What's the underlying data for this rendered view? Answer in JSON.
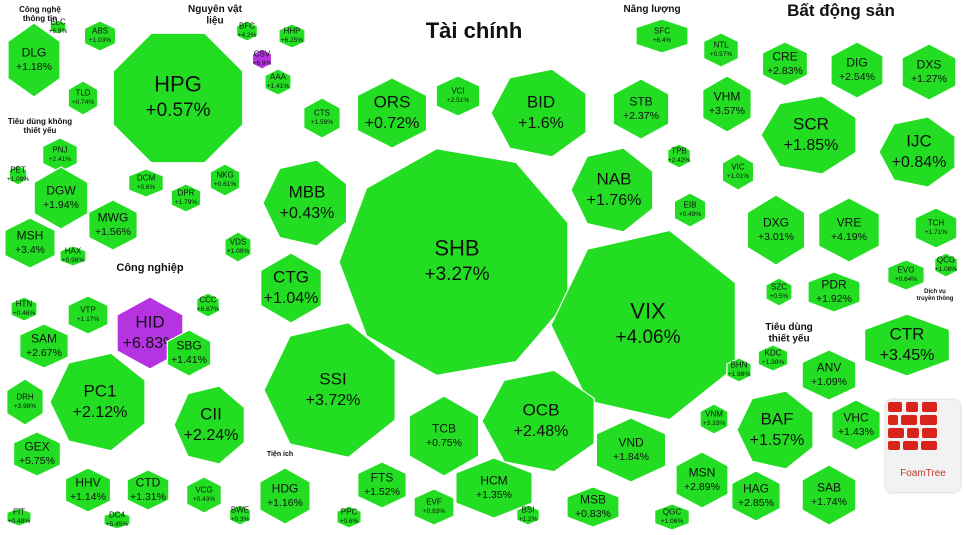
{
  "chart_data": {
    "type": "treemap",
    "color": "#22dd22",
    "highlight_color": "#b533e0",
    "sectors": [
      {
        "name": "Công nghệ thông tin",
        "stocks": [
          {
            "ticker": "DLG",
            "change": "+1.18%"
          },
          {
            "ticker": "ELC",
            "change": "+6.9%"
          }
        ]
      },
      {
        "name": "Nguyên vật liệu",
        "stocks": [
          {
            "ticker": "HPG",
            "change": "+0.57%"
          },
          {
            "ticker": "ABS",
            "change": "+1.03%"
          },
          {
            "ticker": "BFC",
            "change": "+4.2%"
          },
          {
            "ticker": "HHP",
            "change": "+6.25%"
          },
          {
            "ticker": "CSV",
            "change": "+6.9%"
          },
          {
            "ticker": "AAA",
            "change": "+1.41%"
          },
          {
            "ticker": "TLD",
            "change": "+0.74%"
          },
          {
            "ticker": "DCM",
            "change": "+0.6%"
          },
          {
            "ticker": "DPR",
            "change": "+1.79%"
          },
          {
            "ticker": "NKG",
            "change": "+0.61%"
          }
        ]
      },
      {
        "name": "Năng lượng",
        "stocks": [
          {
            "ticker": "SFC",
            "change": "+6.4%"
          }
        ]
      },
      {
        "name": "Bất động sản",
        "stocks": [
          {
            "ticker": "NTL",
            "change": "+0.57%"
          },
          {
            "ticker": "CRE",
            "change": "+2.83%"
          },
          {
            "ticker": "DIG",
            "change": "+2.54%"
          },
          {
            "ticker": "DXS",
            "change": "+1.27%"
          },
          {
            "ticker": "VHM",
            "change": "+3.57%"
          },
          {
            "ticker": "SCR",
            "change": "+1.85%"
          },
          {
            "ticker": "IJC",
            "change": "+0.84%"
          },
          {
            "ticker": "VIC",
            "change": "+1.01%"
          },
          {
            "ticker": "DXG",
            "change": "+3.01%"
          },
          {
            "ticker": "VRE",
            "change": "+4.19%"
          },
          {
            "ticker": "TCH",
            "change": "+1.71%"
          },
          {
            "ticker": "SZC",
            "change": "+0.5%"
          },
          {
            "ticker": "PDR",
            "change": "+1.92%"
          },
          {
            "ticker": "EVG",
            "change": "+0.64%"
          },
          {
            "ticker": "QCG",
            "change": "+1.08%"
          }
        ]
      },
      {
        "name": "Tài chính",
        "stocks": [
          {
            "ticker": "SHB",
            "change": "+3.27%"
          },
          {
            "ticker": "VIX",
            "change": "+4.06%"
          },
          {
            "ticker": "SSI",
            "change": "+3.72%"
          },
          {
            "ticker": "BID",
            "change": "+1.6%"
          },
          {
            "ticker": "OCB",
            "change": "+2.48%"
          },
          {
            "ticker": "MBB",
            "change": "+0.43%"
          },
          {
            "ticker": "NAB",
            "change": "+1.76%"
          },
          {
            "ticker": "CTG",
            "change": "+1.04%"
          },
          {
            "ticker": "ORS",
            "change": "+0.72%"
          },
          {
            "ticker": "CTS",
            "change": "+1.59%"
          },
          {
            "ticker": "VCI",
            "change": "+2.51%"
          },
          {
            "ticker": "STB",
            "change": "+2.37%"
          },
          {
            "ticker": "TPB",
            "change": "+2.42%"
          },
          {
            "ticker": "EIB",
            "change": "+0.48%"
          },
          {
            "ticker": "VDS",
            "change": "+1.09%"
          },
          {
            "ticker": "TCB",
            "change": "+0.75%"
          },
          {
            "ticker": "HCM",
            "change": "+1.35%"
          },
          {
            "ticker": "VND",
            "change": "+1.84%"
          },
          {
            "ticker": "MSB",
            "change": "+0.83%"
          },
          {
            "ticker": "FTS",
            "change": "+1.52%"
          },
          {
            "ticker": "EVF",
            "change": "+0.83%"
          },
          {
            "ticker": "BSI",
            "change": "+1.2%"
          }
        ]
      },
      {
        "name": "Tiêu dùng không thiết yếu",
        "stocks": [
          {
            "ticker": "PNJ",
            "change": "+2.41%"
          },
          {
            "ticker": "PET",
            "change": "+1.09%"
          },
          {
            "ticker": "DGW",
            "change": "+1.94%"
          },
          {
            "ticker": "MWG",
            "change": "+1.56%"
          },
          {
            "ticker": "MSH",
            "change": "+3.4%"
          },
          {
            "ticker": "HAX",
            "change": "+0.96%"
          }
        ]
      },
      {
        "name": "Công nghiệp",
        "stocks": [
          {
            "ticker": "HID",
            "change": "+6.83%"
          },
          {
            "ticker": "HTN",
            "change": "+0.46%"
          },
          {
            "ticker": "VTP",
            "change": "+1.17%"
          },
          {
            "ticker": "CCC",
            "change": "+6.67%"
          },
          {
            "ticker": "SAM",
            "change": "+2.67%"
          },
          {
            "ticker": "SBG",
            "change": "+1.41%"
          },
          {
            "ticker": "DRH",
            "change": "+3.98%"
          },
          {
            "ticker": "PC1",
            "change": "+2.12%"
          },
          {
            "ticker": "CII",
            "change": "+2.24%"
          },
          {
            "ticker": "GEX",
            "change": "+5.75%"
          },
          {
            "ticker": "HHV",
            "change": "+1.14%"
          },
          {
            "ticker": "CTD",
            "change": "+1.31%"
          },
          {
            "ticker": "VCG",
            "change": "+0.43%"
          },
          {
            "ticker": "DC4",
            "change": "+5.45%"
          },
          {
            "ticker": "FIT",
            "change": "+0.48%"
          }
        ]
      },
      {
        "name": "Tiện ích",
        "stocks": [
          {
            "ticker": "HDG",
            "change": "+1.16%"
          },
          {
            "ticker": "PPC",
            "change": "+0.6%"
          },
          {
            "ticker": "BWE",
            "change": "+0.3%"
          }
        ]
      },
      {
        "name": "Tiêu dùng thiết yếu",
        "stocks": [
          {
            "ticker": "BHN",
            "change": "+1.98%"
          },
          {
            "ticker": "KDC",
            "change": "+1.38%"
          },
          {
            "ticker": "ANV",
            "change": "+1.09%"
          },
          {
            "ticker": "VNM",
            "change": "+3.33%"
          },
          {
            "ticker": "BAF",
            "change": "+1.57%"
          },
          {
            "ticker": "VHC",
            "change": "+1.43%"
          },
          {
            "ticker": "MSN",
            "change": "+2.89%"
          },
          {
            "ticker": "HAG",
            "change": "+2.85%"
          },
          {
            "ticker": "SAB",
            "change": "+1.74%"
          },
          {
            "ticker": "QGC",
            "change": "+1.06%"
          }
        ]
      },
      {
        "name": "Dịch vụ truyền thông",
        "stocks": [
          {
            "ticker": "CTR",
            "change": "+3.45%"
          }
        ]
      }
    ]
  },
  "brand": {
    "logo_text": "FoamTree"
  }
}
